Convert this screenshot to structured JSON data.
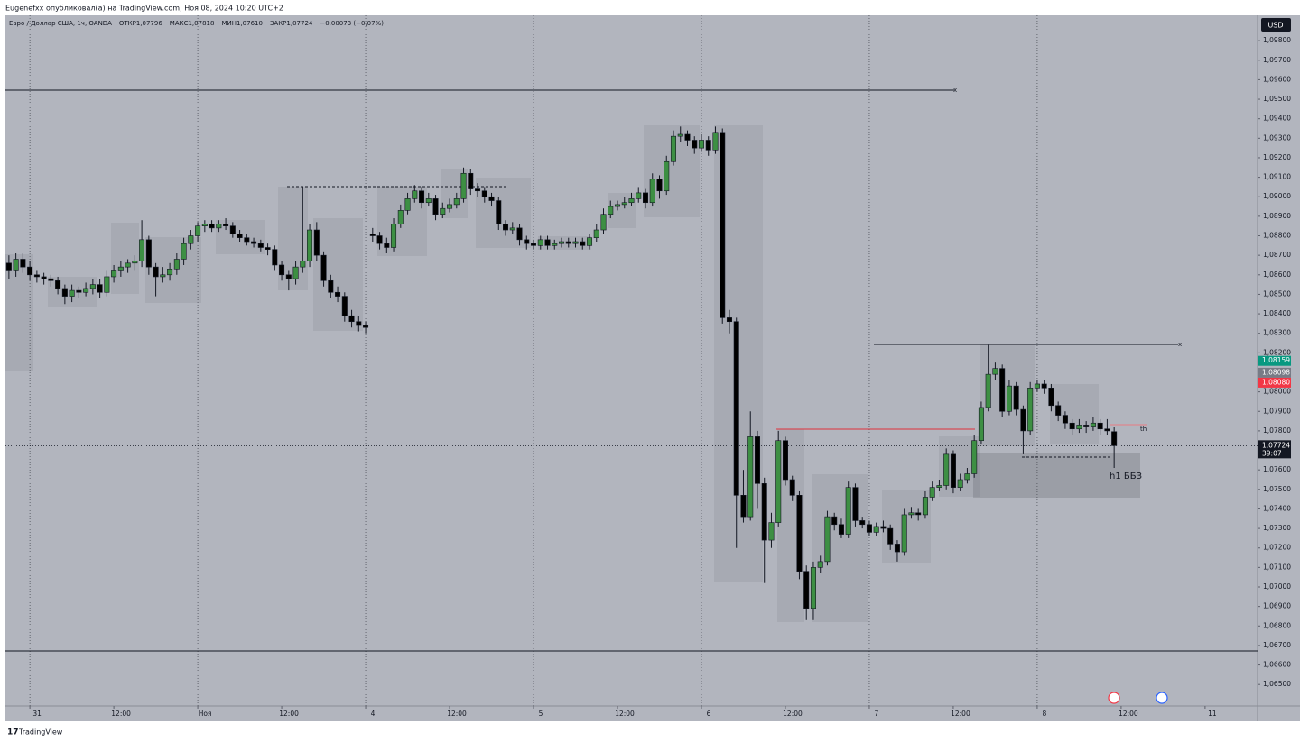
{
  "chart_data": {
    "type": "candlestick",
    "top_bar": "Eugenefxx опубликовал(а) на TradingView.com, Ноя 08, 2024 10:20 UTC+2",
    "legend": [
      "Евро / Доллар США, 1ч, OANDA",
      "ОТКР1,07796",
      "МАКС1,07818",
      "МИН1,07610",
      "ЗАКР1,07724",
      "−0,00073 (−0,07%)"
    ],
    "currency": "USD",
    "footer": "TradingView",
    "up_color": "#3d8f43",
    "down_color": "#000000",
    "xlim": [
      -0.5,
      178.5
    ],
    "ylim": [
      1.0639,
      1.0993
    ],
    "xticks": [
      {
        "value": 3,
        "label": "31",
        "grid": true
      },
      {
        "value": 15,
        "label": "12:00"
      },
      {
        "value": 27,
        "label": "Ноя",
        "grid": true
      },
      {
        "value": 39,
        "label": "12:00"
      },
      {
        "value": 51,
        "label": "4",
        "grid": true
      },
      {
        "value": 63,
        "label": "12:00"
      },
      {
        "value": 75,
        "label": "5",
        "grid": true
      },
      {
        "value": 87,
        "label": "12:00"
      },
      {
        "value": 99,
        "label": "6",
        "grid": true
      },
      {
        "value": 111,
        "label": "12:00"
      },
      {
        "value": 123,
        "label": "7",
        "grid": true
      },
      {
        "value": 135,
        "label": "12:00"
      },
      {
        "value": 147,
        "label": "8",
        "grid": true
      },
      {
        "value": 159,
        "label": "12:00"
      },
      {
        "value": 171,
        "label": "11"
      }
    ],
    "yticks": [
      {
        "value": 1.098,
        "label": "1,09800"
      },
      {
        "value": 1.097,
        "label": "1,09700"
      },
      {
        "value": 1.096,
        "label": "1,09600"
      },
      {
        "value": 1.095,
        "label": "1,09500"
      },
      {
        "value": 1.094,
        "label": "1,09400"
      },
      {
        "value": 1.093,
        "label": "1,09300"
      },
      {
        "value": 1.092,
        "label": "1,09200"
      },
      {
        "value": 1.091,
        "label": "1,09100"
      },
      {
        "value": 1.09,
        "label": "1,09000"
      },
      {
        "value": 1.089,
        "label": "1,08900"
      },
      {
        "value": 1.088,
        "label": "1,08800"
      },
      {
        "value": 1.087,
        "label": "1,08700"
      },
      {
        "value": 1.086,
        "label": "1,08600"
      },
      {
        "value": 1.085,
        "label": "1,08500"
      },
      {
        "value": 1.084,
        "label": "1,08400"
      },
      {
        "value": 1.083,
        "label": "1,08300"
      },
      {
        "value": 1.082,
        "label": "1,08200"
      },
      {
        "value": 1.081,
        "label": "1,08100"
      },
      {
        "value": 1.08,
        "label": "1,08000"
      },
      {
        "value": 1.079,
        "label": "1,07900"
      },
      {
        "value": 1.078,
        "label": "1,07800"
      },
      {
        "value": 1.077,
        "label": "1,07700"
      },
      {
        "value": 1.076,
        "label": "1,07600"
      },
      {
        "value": 1.075,
        "label": "1,07500"
      },
      {
        "value": 1.074,
        "label": "1,07400"
      },
      {
        "value": 1.073,
        "label": "1,07300"
      },
      {
        "value": 1.072,
        "label": "1,07200"
      },
      {
        "value": 1.071,
        "label": "1,07100"
      },
      {
        "value": 1.07,
        "label": "1,07000"
      },
      {
        "value": 1.069,
        "label": "1,06900"
      },
      {
        "value": 1.068,
        "label": "1,06800"
      },
      {
        "value": 1.067,
        "label": "1,06700"
      },
      {
        "value": 1.066,
        "label": "1,06600"
      },
      {
        "value": 1.065,
        "label": "1,06500"
      }
    ],
    "price_labels": [
      {
        "value": 1.08159,
        "label": "1,08159",
        "color": "#089981"
      },
      {
        "value": 1.08098,
        "label": "1,08098",
        "color": "#787b86"
      },
      {
        "value": 1.0808,
        "label": "1,08080",
        "color": "#f23645"
      }
    ],
    "last_price": {
      "value": 1.07724,
      "label": "1,07724",
      "countdown": "39:07"
    },
    "annotations": [
      "x",
      "x",
      "th",
      "h1 ББЗ"
    ],
    "x": [
      0,
      1,
      2,
      3,
      4,
      5,
      6,
      7,
      8,
      9,
      10,
      11,
      12,
      13,
      14,
      15,
      16,
      17,
      18,
      19,
      20,
      21,
      22,
      23,
      24,
      25,
      26,
      27,
      28,
      29,
      30,
      31,
      32,
      33,
      34,
      35,
      36,
      37,
      38,
      39,
      40,
      41,
      42,
      43,
      44,
      45,
      46,
      47,
      48,
      49,
      50,
      51,
      52,
      53,
      54,
      55,
      56,
      57,
      58,
      59,
      60,
      61,
      62,
      63,
      64,
      65,
      66,
      67,
      68,
      69,
      70,
      71,
      72,
      73,
      74,
      75,
      76,
      77,
      78,
      79,
      80,
      81,
      82,
      83,
      84,
      85,
      86,
      87,
      88,
      89,
      90,
      91,
      92,
      93,
      94,
      95,
      96,
      97,
      98,
      99,
      100,
      101,
      102,
      103,
      104,
      105,
      106,
      107,
      108,
      109,
      110,
      111,
      112,
      113,
      114,
      115,
      116,
      117,
      118,
      119,
      120,
      121,
      122,
      123,
      124,
      125,
      126,
      127,
      128,
      129,
      130,
      131,
      132,
      133,
      134,
      135,
      136,
      137,
      138,
      139,
      140,
      141,
      142,
      143,
      144,
      145,
      146,
      147,
      148,
      149,
      150,
      151,
      152,
      153,
      154,
      155,
      156,
      157,
      158
    ],
    "ohlc": [
      [
        1.0866,
        1.087,
        1.0858,
        1.0862
      ],
      [
        1.0862,
        1.0871,
        1.0859,
        1.0868
      ],
      [
        1.0868,
        1.0871,
        1.0861,
        1.0864
      ],
      [
        1.0864,
        1.0867,
        1.0857,
        1.086
      ],
      [
        1.086,
        1.0862,
        1.0856,
        1.0859
      ],
      [
        1.0859,
        1.0861,
        1.0855,
        1.0858
      ],
      [
        1.0858,
        1.086,
        1.0854,
        1.0857
      ],
      [
        1.0857,
        1.0859,
        1.085,
        1.0853
      ],
      [
        1.0853,
        1.0855,
        1.0845,
        1.0849
      ],
      [
        1.0849,
        1.0855,
        1.0846,
        1.0852
      ],
      [
        1.0852,
        1.0854,
        1.0848,
        1.0851
      ],
      [
        1.0851,
        1.0856,
        1.0849,
        1.0853
      ],
      [
        1.0853,
        1.0858,
        1.085,
        1.0855
      ],
      [
        1.0855,
        1.0858,
        1.0848,
        1.0851
      ],
      [
        1.0851,
        1.0862,
        1.0849,
        1.0859
      ],
      [
        1.0859,
        1.0865,
        1.0856,
        1.0862
      ],
      [
        1.0862,
        1.0867,
        1.0859,
        1.0864
      ],
      [
        1.0864,
        1.0868,
        1.0861,
        1.0866
      ],
      [
        1.0866,
        1.087,
        1.0862,
        1.0867
      ],
      [
        1.0867,
        1.0888,
        1.0864,
        1.0878
      ],
      [
        1.0878,
        1.088,
        1.086,
        1.0864
      ],
      [
        1.0864,
        1.0866,
        1.0849,
        1.0859
      ],
      [
        1.0859,
        1.0864,
        1.0856,
        1.086
      ],
      [
        1.086,
        1.0866,
        1.0857,
        1.0863
      ],
      [
        1.0863,
        1.0871,
        1.086,
        1.0868
      ],
      [
        1.0868,
        1.0879,
        1.0865,
        1.0876
      ],
      [
        1.0876,
        1.0883,
        1.0873,
        1.088
      ],
      [
        1.088,
        1.0887,
        1.0877,
        1.0885
      ],
      [
        1.0885,
        1.0888,
        1.0882,
        1.0886
      ],
      [
        1.0886,
        1.0888,
        1.0882,
        1.0884
      ],
      [
        1.0884,
        1.0888,
        1.0882,
        1.0886
      ],
      [
        1.0886,
        1.0889,
        1.0883,
        1.0885
      ],
      [
        1.0885,
        1.0887,
        1.0879,
        1.0881
      ],
      [
        1.0881,
        1.0883,
        1.0877,
        1.0879
      ],
      [
        1.0879,
        1.0881,
        1.0875,
        1.0877
      ],
      [
        1.0877,
        1.0879,
        1.0874,
        1.0876
      ],
      [
        1.0876,
        1.0878,
        1.0872,
        1.0874
      ],
      [
        1.0874,
        1.0876,
        1.087,
        1.0873
      ],
      [
        1.0873,
        1.0875,
        1.0862,
        1.0865
      ],
      [
        1.0865,
        1.0867,
        1.0857,
        1.086
      ],
      [
        1.086,
        1.0862,
        1.0852,
        1.0858
      ],
      [
        1.0858,
        1.0867,
        1.0855,
        1.0864
      ],
      [
        1.0864,
        1.0905,
        1.0861,
        1.0867
      ],
      [
        1.0867,
        1.0886,
        1.0864,
        1.0883
      ],
      [
        1.0883,
        1.0887,
        1.0867,
        1.087
      ],
      [
        1.087,
        1.0872,
        1.0854,
        1.0857
      ],
      [
        1.0857,
        1.086,
        1.0848,
        1.0851
      ],
      [
        1.0851,
        1.0854,
        1.0846,
        1.0849
      ],
      [
        1.0849,
        1.0851,
        1.0836,
        1.0839
      ],
      [
        1.0839,
        1.0842,
        1.0833,
        1.0836
      ],
      [
        1.0836,
        1.0839,
        1.0831,
        1.0834
      ],
      [
        1.0834,
        1.0836,
        1.083,
        1.0833
      ],
      [
        1.0881,
        1.0884,
        1.0877,
        1.088
      ],
      [
        1.088,
        1.0882,
        1.0873,
        1.0876
      ],
      [
        1.0876,
        1.0879,
        1.0871,
        1.0874
      ],
      [
        1.0874,
        1.0889,
        1.0872,
        1.0886
      ],
      [
        1.0886,
        1.0896,
        1.0884,
        1.0893
      ],
      [
        1.0893,
        1.0902,
        1.0891,
        1.0899
      ],
      [
        1.0899,
        1.0906,
        1.0897,
        1.0903
      ],
      [
        1.0903,
        1.0905,
        1.0894,
        1.0897
      ],
      [
        1.0897,
        1.0902,
        1.0895,
        1.0899
      ],
      [
        1.0899,
        1.0901,
        1.0888,
        1.0891
      ],
      [
        1.0891,
        1.0897,
        1.0889,
        1.0894
      ],
      [
        1.0894,
        1.0899,
        1.0892,
        1.0896
      ],
      [
        1.0896,
        1.0902,
        1.0894,
        1.0899
      ],
      [
        1.0899,
        1.0915,
        1.0897,
        1.0912
      ],
      [
        1.0912,
        1.0914,
        1.0901,
        1.0904
      ],
      [
        1.0904,
        1.0907,
        1.09,
        1.0903
      ],
      [
        1.0903,
        1.0905,
        1.0897,
        1.09
      ],
      [
        1.09,
        1.0902,
        1.0895,
        1.0898
      ],
      [
        1.0898,
        1.09,
        1.0883,
        1.0886
      ],
      [
        1.0886,
        1.0888,
        1.088,
        1.0883
      ],
      [
        1.0883,
        1.0887,
        1.0881,
        1.0884
      ],
      [
        1.0884,
        1.0886,
        1.0875,
        1.0878
      ],
      [
        1.0878,
        1.088,
        1.0873,
        1.0876
      ],
      [
        1.0876,
        1.0878,
        1.0873,
        1.0875
      ],
      [
        1.0875,
        1.088,
        1.0873,
        1.0878
      ],
      [
        1.0878,
        1.088,
        1.0873,
        1.0875
      ],
      [
        1.0875,
        1.0878,
        1.0873,
        1.0876
      ],
      [
        1.0876,
        1.0879,
        1.0874,
        1.0877
      ],
      [
        1.0877,
        1.0879,
        1.0874,
        1.0876
      ],
      [
        1.0876,
        1.0879,
        1.0874,
        1.0877
      ],
      [
        1.0877,
        1.0879,
        1.0873,
        1.0875
      ],
      [
        1.0875,
        1.0881,
        1.0873,
        1.0879
      ],
      [
        1.0879,
        1.0886,
        1.0877,
        1.0883
      ],
      [
        1.0883,
        1.0894,
        1.0881,
        1.0891
      ],
      [
        1.0891,
        1.0898,
        1.0889,
        1.0895
      ],
      [
        1.0895,
        1.0898,
        1.0893,
        1.0896
      ],
      [
        1.0896,
        1.09,
        1.0894,
        1.0897
      ],
      [
        1.0897,
        1.0902,
        1.0895,
        1.0899
      ],
      [
        1.0899,
        1.0905,
        1.0897,
        1.0902
      ],
      [
        1.0902,
        1.0904,
        1.0894,
        1.0897
      ],
      [
        1.0897,
        1.0912,
        1.0895,
        1.0909
      ],
      [
        1.0909,
        1.0911,
        1.0899,
        1.0903
      ],
      [
        1.0903,
        1.0921,
        1.0901,
        1.0918
      ],
      [
        1.0918,
        1.0934,
        1.0916,
        1.0931
      ],
      [
        1.0931,
        1.0936,
        1.0928,
        1.0932
      ],
      [
        1.0932,
        1.0934,
        1.0926,
        1.0929
      ],
      [
        1.0929,
        1.0931,
        1.0922,
        1.0925
      ],
      [
        1.0925,
        1.0932,
        1.0923,
        1.0929
      ],
      [
        1.0929,
        1.0931,
        1.0921,
        1.0924
      ],
      [
        1.0924,
        1.0936,
        1.0922,
        1.0933
      ],
      [
        1.0933,
        1.0935,
        1.0835,
        1.0838
      ],
      [
        1.0838,
        1.0842,
        1.083,
        1.0836
      ],
      [
        1.0836,
        1.0838,
        1.072,
        1.0747
      ],
      [
        1.0747,
        1.076,
        1.0733,
        1.0736
      ],
      [
        1.0736,
        1.079,
        1.0734,
        1.0777
      ],
      [
        1.0777,
        1.078,
        1.074,
        1.0753
      ],
      [
        1.0753,
        1.0756,
        1.0702,
        1.0724
      ],
      [
        1.0724,
        1.0738,
        1.072,
        1.0733
      ],
      [
        1.0733,
        1.078,
        1.0731,
        1.0775
      ],
      [
        1.0775,
        1.0777,
        1.0752,
        1.0755
      ],
      [
        1.0755,
        1.0757,
        1.0744,
        1.0747
      ],
      [
        1.0747,
        1.0749,
        1.0704,
        1.0708
      ],
      [
        1.0708,
        1.0711,
        1.0683,
        1.0689
      ],
      [
        1.0689,
        1.0713,
        1.0683,
        1.071
      ],
      [
        1.071,
        1.0716,
        1.0707,
        1.0713
      ],
      [
        1.0713,
        1.0739,
        1.0711,
        1.0736
      ],
      [
        1.0736,
        1.0738,
        1.0729,
        1.0732
      ],
      [
        1.0732,
        1.0735,
        1.0725,
        1.0727
      ],
      [
        1.0727,
        1.0754,
        1.0725,
        1.0751
      ],
      [
        1.0751,
        1.0753,
        1.0731,
        1.0734
      ],
      [
        1.0734,
        1.0736,
        1.073,
        1.0732
      ],
      [
        1.0732,
        1.0734,
        1.0726,
        1.0728
      ],
      [
        1.0728,
        1.0733,
        1.0726,
        1.0731
      ],
      [
        1.0731,
        1.0734,
        1.0728,
        1.073
      ],
      [
        1.073,
        1.0732,
        1.0719,
        1.0722
      ],
      [
        1.0722,
        1.0724,
        1.0713,
        1.0718
      ],
      [
        1.0718,
        1.074,
        1.0716,
        1.0737
      ],
      [
        1.0737,
        1.0741,
        1.0735,
        1.0738
      ],
      [
        1.0738,
        1.074,
        1.0734,
        1.0737
      ],
      [
        1.0737,
        1.0749,
        1.0735,
        1.0746
      ],
      [
        1.0746,
        1.0754,
        1.0744,
        1.0751
      ],
      [
        1.0751,
        1.0755,
        1.0749,
        1.0752
      ],
      [
        1.0752,
        1.0771,
        1.075,
        1.0768
      ],
      [
        1.0768,
        1.077,
        1.0748,
        1.0751
      ],
      [
        1.0751,
        1.0758,
        1.0749,
        1.0755
      ],
      [
        1.0755,
        1.0761,
        1.0753,
        1.0758
      ],
      [
        1.0758,
        1.0778,
        1.0756,
        1.0775
      ],
      [
        1.0775,
        1.0795,
        1.0773,
        1.0792
      ],
      [
        1.0792,
        1.0824,
        1.079,
        1.0809
      ],
      [
        1.0809,
        1.0815,
        1.0806,
        1.0812
      ],
      [
        1.0812,
        1.0814,
        1.0787,
        1.079
      ],
      [
        1.079,
        1.0806,
        1.0788,
        1.0803
      ],
      [
        1.0803,
        1.0805,
        1.0788,
        1.0791
      ],
      [
        1.0791,
        1.0793,
        1.0768,
        1.078
      ],
      [
        1.078,
        1.0805,
        1.0778,
        1.0802
      ],
      [
        1.0802,
        1.0806,
        1.08,
        1.0804
      ],
      [
        1.0804,
        1.0806,
        1.0799,
        1.0802
      ],
      [
        1.0802,
        1.0804,
        1.079,
        1.0793
      ],
      [
        1.0793,
        1.0795,
        1.0785,
        1.0788
      ],
      [
        1.0788,
        1.079,
        1.0781,
        1.0784
      ],
      [
        1.0784,
        1.0786,
        1.0778,
        1.0781
      ],
      [
        1.0781,
        1.0786,
        1.0779,
        1.0783
      ],
      [
        1.0783,
        1.0785,
        1.0779,
        1.0782
      ],
      [
        1.0782,
        1.0787,
        1.078,
        1.0784
      ],
      [
        1.0784,
        1.0786,
        1.0778,
        1.0781
      ],
      [
        1.0781,
        1.0786,
        1.0778,
        1.078
      ],
      [
        1.07796,
        1.07818,
        1.0761,
        1.07724
      ]
    ]
  }
}
